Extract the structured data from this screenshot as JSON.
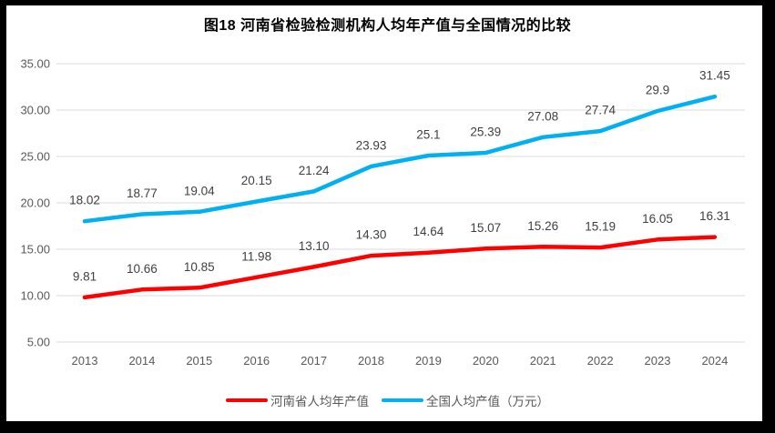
{
  "title": "图18  河南省检验检测机构人均年产值与全国情况的比较",
  "chart_data": {
    "type": "line",
    "categories": [
      "2013",
      "2014",
      "2015",
      "2016",
      "2017",
      "2018",
      "2019",
      "2020",
      "2021",
      "2022",
      "2023",
      "2024"
    ],
    "series": [
      {
        "name": "河南省人均年产值",
        "color": "#FF0000",
        "values": [
          9.81,
          10.66,
          10.85,
          11.98,
          13.1,
          14.3,
          14.64,
          15.07,
          15.26,
          15.19,
          16.05,
          16.31
        ],
        "labels": [
          "9.81",
          "10.66",
          "10.85",
          "11.98",
          "13.10",
          "14.30",
          "14.64",
          "15.07",
          "15.26",
          "15.19",
          "16.05",
          "16.31"
        ]
      },
      {
        "name": "全国人均产值（万元）",
        "color": "#00B0F0",
        "values": [
          18.02,
          18.77,
          19.04,
          20.15,
          21.24,
          23.93,
          25.1,
          25.39,
          27.08,
          27.74,
          29.9,
          31.45
        ],
        "labels": [
          "18.02",
          "18.77",
          "19.04",
          "20.15",
          "21.24",
          "23.93",
          "25.1",
          "25.39",
          "27.08",
          "27.74",
          "29.9",
          "31.45"
        ]
      }
    ],
    "ylim": [
      5,
      35
    ],
    "ytick_step": 5,
    "ytick_labels": [
      "5.00",
      "10.00",
      "15.00",
      "20.00",
      "25.00",
      "30.00",
      "35.00"
    ],
    "grid": true,
    "legend_position": "bottom",
    "xlabel": "",
    "ylabel": ""
  },
  "colors": {
    "henan_line": "#FF0000",
    "national_line": "#00B0F0",
    "gridline": "#E2E2E2",
    "axis_label": "#595959",
    "data_label": "#404040",
    "title_text": "#000000",
    "frame": "#000000",
    "background": "#FFFFFF"
  }
}
